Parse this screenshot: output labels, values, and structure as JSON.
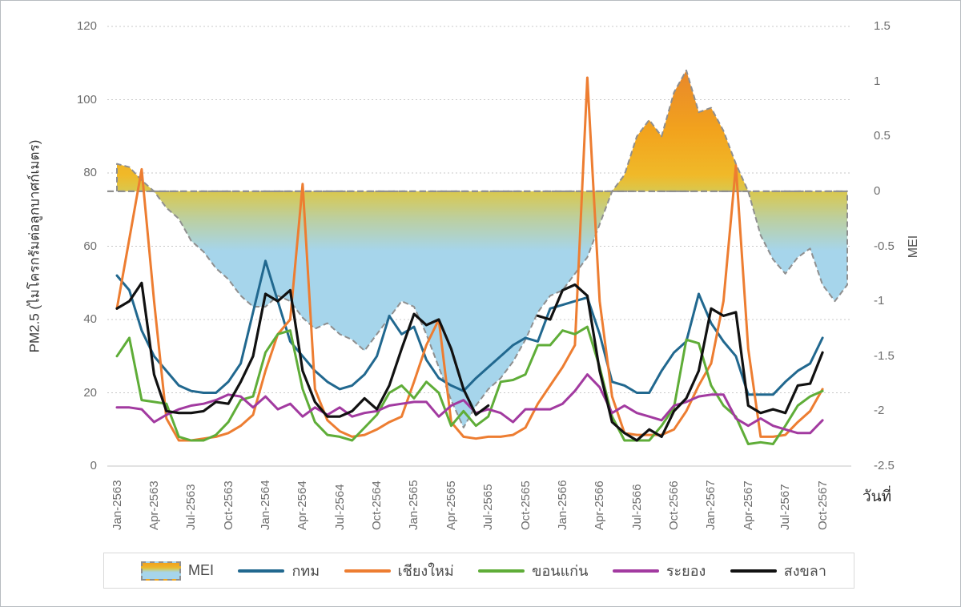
{
  "frame": {
    "background": "#ffffff",
    "border_color": "#b7bcc0"
  },
  "chart_data": {
    "type": "line",
    "title": "",
    "x_axis": {
      "title": "วันที่",
      "tick_labels": [
        "Jan-2563",
        "Apr-2563",
        "Jul-2563",
        "Oct-2563",
        "Jan-2564",
        "Apr-2564",
        "Jul-2564",
        "Oct-2564",
        "Jan-2565",
        "Apr-2565",
        "Jul-2565",
        "Oct-2565",
        "Jan-2566",
        "Apr-2566",
        "Jul-2566",
        "Oct-2566",
        "Jan-2567",
        "Apr-2567",
        "Jul-2567",
        "Oct-2567"
      ],
      "tick_month_indices": [
        0,
        3,
        6,
        9,
        12,
        15,
        18,
        21,
        24,
        27,
        30,
        33,
        36,
        39,
        42,
        45,
        48,
        51,
        54,
        57
      ],
      "months_total": 60
    },
    "left_axis": {
      "title": "PM2.5 (ไมโครกรัมต่อลูกบาศก์เมตร)",
      "ticks": [
        "120",
        "100",
        "80",
        "60",
        "40",
        "20",
        "0"
      ],
      "tick_values": [
        120,
        100,
        80,
        60,
        40,
        20,
        0
      ],
      "range": [
        0,
        120
      ]
    },
    "right_axis": {
      "title": "MEI",
      "ticks": [
        "1.5",
        "1",
        "0.5",
        "0",
        "-0.5",
        "-1",
        "-1.5",
        "-2",
        "-2.5"
      ],
      "tick_values": [
        1.5,
        1,
        0.5,
        0,
        -0.5,
        -1,
        -1.5,
        -2,
        -2.5
      ],
      "range": [
        -2.5,
        1.5
      ]
    },
    "grid": "horizontal-dotted",
    "gridline_color": "#c9c9c9",
    "axis_line_color": "#d0d0d0",
    "mei_area": {
      "label": "MEI",
      "zero_line_value": 0,
      "border_color": "#8f8f8f",
      "zero_line_color": "#909090",
      "gradient": {
        "top_orange": "#E8862B",
        "orange": "#F2A31D",
        "gold": "#F0B929",
        "zero_olive": "#D9C84F",
        "green": "#BCCFA0",
        "light_blue": "#A6D5EB"
      },
      "values": [
        0.25,
        0.22,
        0.1,
        0.0,
        -0.15,
        -0.25,
        -0.45,
        -0.55,
        -0.7,
        -0.8,
        -0.95,
        -1.05,
        -1.05,
        -0.95,
        -1.0,
        -1.15,
        -1.25,
        -1.2,
        -1.3,
        -1.35,
        -1.45,
        -1.3,
        -1.15,
        -1.0,
        -1.05,
        -1.3,
        -1.6,
        -1.9,
        -2.15,
        -1.95,
        -1.8,
        -1.7,
        -1.55,
        -1.35,
        -1.1,
        -0.95,
        -0.9,
        -0.75,
        -0.6,
        -0.3,
        0.0,
        0.15,
        0.5,
        0.65,
        0.5,
        0.9,
        1.1,
        0.72,
        0.76,
        0.55,
        0.25,
        0.0,
        -0.4,
        -0.62,
        -0.75,
        -0.6,
        -0.52,
        -0.85,
        -1.0,
        -0.85
      ]
    },
    "series": [
      {
        "key": "bangkok",
        "label": "กทม",
        "color": "#21688F",
        "width": 3,
        "values": [
          52,
          48,
          37,
          30,
          26,
          22,
          20.5,
          20,
          20,
          23,
          28,
          42,
          56,
          45,
          34,
          30,
          26,
          23,
          21,
          22,
          25,
          30,
          41,
          36,
          38,
          29,
          24,
          22,
          20.5,
          24,
          27,
          30,
          33,
          35,
          34,
          43,
          44,
          45,
          46,
          36,
          23,
          22,
          20,
          20,
          26,
          31,
          34,
          47,
          39,
          34,
          30,
          19.5,
          19.5,
          19.5,
          23,
          26,
          28,
          35
        ]
      },
      {
        "key": "chiangmai",
        "label": "เชียงใหม่",
        "color": "#ED7D31",
        "width": 3,
        "values": [
          43,
          62,
          81,
          45,
          13,
          7,
          7,
          7.5,
          8,
          9,
          11,
          14,
          26,
          36,
          40,
          77,
          21,
          12.5,
          9.5,
          8,
          8.5,
          10,
          12,
          13.5,
          23,
          33,
          40,
          12,
          8,
          7.5,
          8,
          8,
          8.5,
          10.5,
          17,
          22,
          27,
          33,
          106,
          45,
          19,
          9,
          8.5,
          8.5,
          8.5,
          10,
          15,
          22,
          28,
          45,
          82,
          32,
          8,
          8,
          8.5,
          12,
          15,
          21
        ]
      },
      {
        "key": "khonkaen",
        "label": "ขอนแก่น",
        "color": "#5FAD38",
        "width": 3,
        "values": [
          30,
          35,
          18,
          17.5,
          17,
          8,
          7,
          7,
          8.5,
          12,
          18,
          19,
          31,
          36,
          37,
          21,
          12,
          8.5,
          8,
          7,
          10.5,
          14,
          20,
          22,
          18.5,
          23,
          20,
          11,
          15,
          11,
          13.5,
          23,
          23.5,
          25,
          33,
          33,
          37,
          36,
          38,
          27,
          13.5,
          7,
          7,
          7,
          11,
          16,
          34.5,
          33.5,
          22,
          16.5,
          13.5,
          6,
          6.5,
          6,
          11,
          16.5,
          19,
          20.5
        ]
      },
      {
        "key": "rayong",
        "label": "ระยอง",
        "color": "#A23AA0",
        "width": 3,
        "values": [
          16,
          16,
          15.5,
          12,
          14,
          15.5,
          16.5,
          17,
          18,
          19.5,
          19,
          16,
          19,
          15.5,
          17,
          13.5,
          16,
          14,
          16,
          13.5,
          14.5,
          15,
          16.5,
          17,
          17.5,
          17.5,
          13.5,
          16.5,
          18,
          14.5,
          15.5,
          14.5,
          12,
          15.5,
          15.5,
          15.5,
          17,
          20.5,
          25,
          21.5,
          14.5,
          16.5,
          14.5,
          13.5,
          12.5,
          16.5,
          17.5,
          19,
          19.5,
          19.5,
          13,
          11,
          13,
          11,
          10,
          9,
          9,
          12.5
        ]
      },
      {
        "key": "songkhla",
        "label": "สงขลา",
        "color": "#111111",
        "width": 3.2,
        "values": [
          43,
          45,
          50,
          25,
          15,
          14.5,
          14.5,
          15,
          17.5,
          17,
          23,
          30,
          47,
          45,
          48,
          26,
          17.5,
          13.5,
          13.5,
          15,
          18.5,
          15.5,
          22,
          32,
          41.5,
          38.5,
          40,
          32,
          21,
          14,
          16.5,
          null,
          null,
          null,
          41,
          40,
          48,
          49.5,
          46.5,
          26,
          12,
          9,
          7,
          10,
          8,
          15,
          18.5,
          26,
          43,
          41,
          42,
          16.5,
          14.5,
          15.5,
          14.5,
          22,
          22.5,
          31
        ]
      }
    ],
    "legend": {
      "items": [
        {
          "key": "mei",
          "label": "MEI",
          "swatch": "area",
          "color": ""
        },
        {
          "key": "bangkok",
          "label": "กทม",
          "swatch": "line",
          "color": "#21688F"
        },
        {
          "key": "chiangmai",
          "label": "เชียงใหม่",
          "swatch": "line",
          "color": "#ED7D31"
        },
        {
          "key": "khonkaen",
          "label": "ขอนแก่น",
          "swatch": "line",
          "color": "#5FAD38"
        },
        {
          "key": "rayong",
          "label": "ระยอง",
          "swatch": "line",
          "color": "#A23AA0"
        },
        {
          "key": "songkhla",
          "label": "สงขลา",
          "swatch": "line",
          "color": "#111111"
        }
      ]
    }
  }
}
